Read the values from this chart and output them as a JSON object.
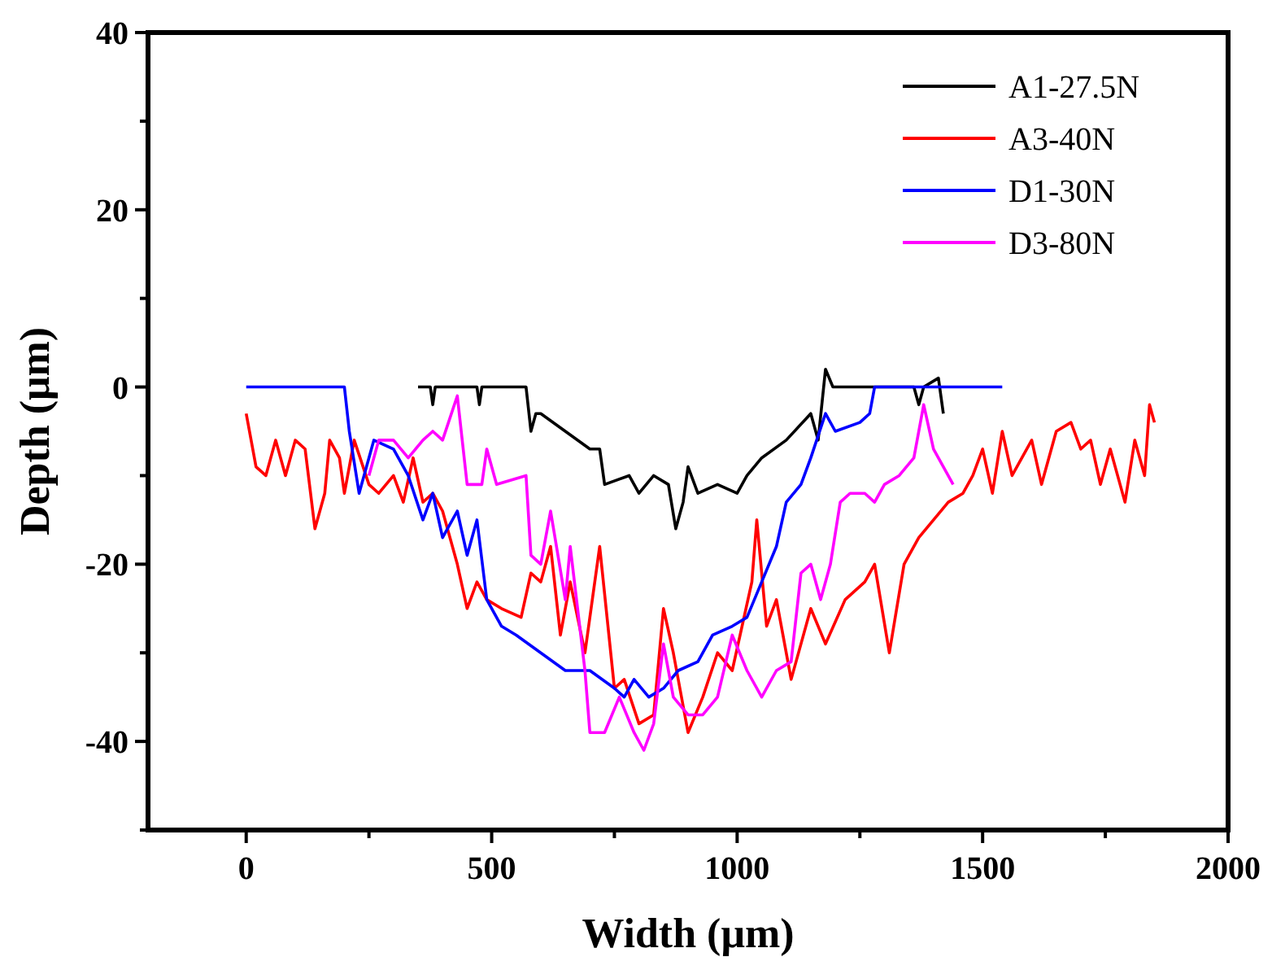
{
  "chart_data": {
    "type": "line",
    "xlabel": "Width (μm)",
    "ylabel": "Depth (μm)",
    "xlim": [
      -200,
      2000
    ],
    "ylim": [
      -50,
      40
    ],
    "xticks": [
      0,
      500,
      1000,
      1500,
      2000,
      {
        "value": 250,
        "label": null
      },
      {
        "value": 750,
        "label": null
      },
      {
        "value": 1250,
        "label": null
      },
      {
        "value": 1750,
        "label": null
      }
    ],
    "yticks": [
      -40,
      -20,
      0,
      20,
      40,
      {
        "value": -50,
        "label": null
      },
      {
        "value": -30,
        "label": null
      },
      {
        "value": -10,
        "label": null
      },
      {
        "value": 10,
        "label": null
      },
      {
        "value": 30,
        "label": null
      }
    ],
    "grid": false,
    "legend": "top right",
    "line_style": "solid",
    "marker": "none",
    "series": [
      {
        "name": "A1-27.5N",
        "color": "#000000",
        "x": [
          350,
          375,
          380,
          385,
          400,
          470,
          475,
          480,
          570,
          580,
          590,
          600,
          650,
          700,
          720,
          730,
          780,
          800,
          830,
          860,
          875,
          890,
          900,
          920,
          960,
          1000,
          1020,
          1050,
          1100,
          1150,
          1165,
          1180,
          1195,
          1360,
          1370,
          1380,
          1410,
          1420
        ],
        "values": [
          0,
          0,
          -2,
          0,
          0,
          0,
          -2,
          0,
          0,
          -5,
          -3,
          -3,
          -5,
          -7,
          -7,
          -11,
          -10,
          -12,
          -10,
          -11,
          -16,
          -13,
          -9,
          -12,
          -11,
          -12,
          -10,
          -8,
          -6,
          -3,
          -6,
          2,
          0,
          0,
          -2,
          0,
          1,
          -3
        ]
      },
      {
        "name": "A3-40N",
        "color": "#ff0000",
        "x": [
          0,
          20,
          40,
          60,
          80,
          100,
          120,
          140,
          160,
          170,
          190,
          200,
          220,
          250,
          270,
          300,
          320,
          340,
          360,
          380,
          400,
          430,
          450,
          470,
          490,
          520,
          560,
          580,
          600,
          620,
          640,
          660,
          690,
          720,
          750,
          770,
          800,
          830,
          850,
          870,
          900,
          930,
          960,
          990,
          1030,
          1040,
          1060,
          1080,
          1110,
          1150,
          1180,
          1220,
          1260,
          1280,
          1310,
          1340,
          1370,
          1400,
          1430,
          1460,
          1480,
          1500,
          1520,
          1540,
          1560,
          1600,
          1620,
          1650,
          1680,
          1700,
          1720,
          1740,
          1760,
          1790,
          1810,
          1830,
          1840,
          1850
        ],
        "values": [
          -3,
          -9,
          -10,
          -6,
          -10,
          -6,
          -7,
          -16,
          -12,
          -6,
          -8,
          -12,
          -6,
          -11,
          -12,
          -10,
          -13,
          -8,
          -13,
          -12,
          -14,
          -20,
          -25,
          -22,
          -24,
          -25,
          -26,
          -21,
          -22,
          -18,
          -28,
          -22,
          -30,
          -18,
          -34,
          -33,
          -38,
          -37,
          -25,
          -30,
          -39,
          -35,
          -30,
          -32,
          -22,
          -15,
          -27,
          -24,
          -33,
          -25,
          -29,
          -24,
          -22,
          -20,
          -30,
          -20,
          -17,
          -15,
          -13,
          -12,
          -10,
          -7,
          -12,
          -5,
          -10,
          -6,
          -11,
          -5,
          -4,
          -7,
          -6,
          -11,
          -7,
          -13,
          -6,
          -10,
          -2,
          -4
        ]
      },
      {
        "name": "D1-30N",
        "color": "#0000ff",
        "x": [
          0,
          200,
          210,
          230,
          250,
          260,
          300,
          330,
          360,
          380,
          400,
          430,
          450,
          470,
          490,
          520,
          550,
          600,
          650,
          700,
          750,
          770,
          790,
          820,
          850,
          880,
          920,
          950,
          990,
          1020,
          1050,
          1080,
          1100,
          1130,
          1150,
          1180,
          1200,
          1250,
          1270,
          1280,
          1540
        ],
        "values": [
          0,
          0,
          -5,
          -12,
          -8,
          -6,
          -7,
          -10,
          -15,
          -12,
          -17,
          -14,
          -19,
          -15,
          -24,
          -27,
          -28,
          -30,
          -32,
          -32,
          -34,
          -35,
          -33,
          -35,
          -34,
          -32,
          -31,
          -28,
          -27,
          -26,
          -22,
          -18,
          -13,
          -11,
          -8,
          -3,
          -5,
          -4,
          -3,
          0,
          0
        ]
      },
      {
        "name": "D3-80N",
        "color": "#ff00ff",
        "x": [
          250,
          270,
          300,
          330,
          360,
          380,
          400,
          430,
          450,
          480,
          490,
          510,
          570,
          580,
          600,
          620,
          650,
          660,
          690,
          700,
          730,
          760,
          790,
          810,
          830,
          850,
          870,
          900,
          930,
          960,
          990,
          1020,
          1050,
          1080,
          1110,
          1130,
          1150,
          1170,
          1190,
          1210,
          1230,
          1260,
          1280,
          1300,
          1330,
          1360,
          1380,
          1400,
          1420,
          1440
        ],
        "values": [
          -10,
          -6,
          -6,
          -8,
          -6,
          -5,
          -6,
          -1,
          -11,
          -11,
          -7,
          -11,
          -10,
          -19,
          -20,
          -14,
          -24,
          -18,
          -32,
          -39,
          -39,
          -35,
          -39,
          -41,
          -38,
          -29,
          -35,
          -37,
          -37,
          -35,
          -28,
          -32,
          -35,
          -32,
          -31,
          -21,
          -20,
          -24,
          -20,
          -13,
          -12,
          -12,
          -13,
          -11,
          -10,
          -8,
          -2,
          -7,
          -9,
          -11
        ]
      }
    ]
  }
}
